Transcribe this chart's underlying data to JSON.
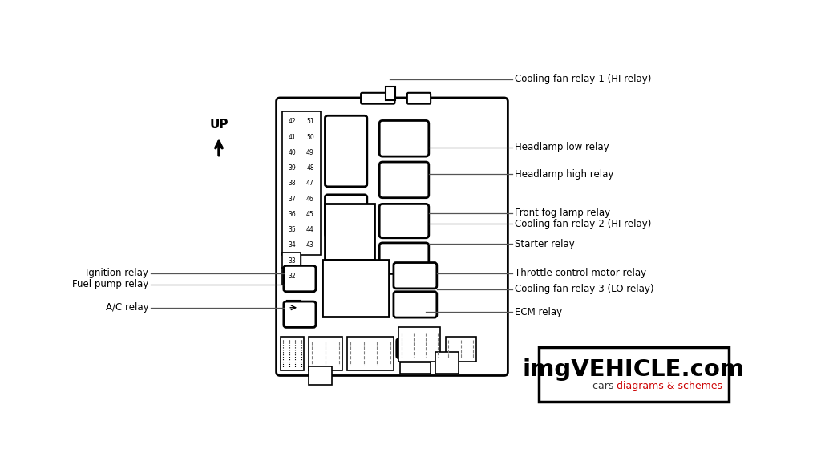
{
  "background_color": "#ffffff",
  "fuse_pairs": [
    [
      "42",
      "51"
    ],
    [
      "41",
      "50"
    ],
    [
      "40",
      "49"
    ],
    [
      "39",
      "48"
    ],
    [
      "38",
      "47"
    ],
    [
      "37",
      "46"
    ],
    [
      "36",
      "45"
    ],
    [
      "35",
      "44"
    ],
    [
      "34",
      "43"
    ],
    [
      "33",
      ""
    ],
    [
      "32",
      ""
    ]
  ],
  "right_labels": [
    [
      "Cooling fan relay-1 (HI relay)",
      38
    ],
    [
      "Headlamp low relay",
      148
    ],
    [
      "Headlamp high relay",
      192
    ],
    [
      "Front fog lamp relay",
      248
    ],
    [
      "Cooling fan relay-2 (HI relay)",
      268
    ],
    [
      "Starter relay",
      302
    ],
    [
      "Throttle control motor relay",
      352
    ],
    [
      "Cooling fan relay-3 (LO relay)",
      378
    ],
    [
      "ECM relay",
      410
    ]
  ],
  "left_labels": [
    [
      "Ignition relay",
      352
    ],
    [
      "Fuel pump relay",
      370
    ],
    [
      "A/C relay",
      408
    ]
  ],
  "watermark_line1": "imgVEHICLE.com",
  "watermark_line2_black": "cars ",
  "watermark_line2_red": "diagrams & schemes",
  "up_label": "UP"
}
